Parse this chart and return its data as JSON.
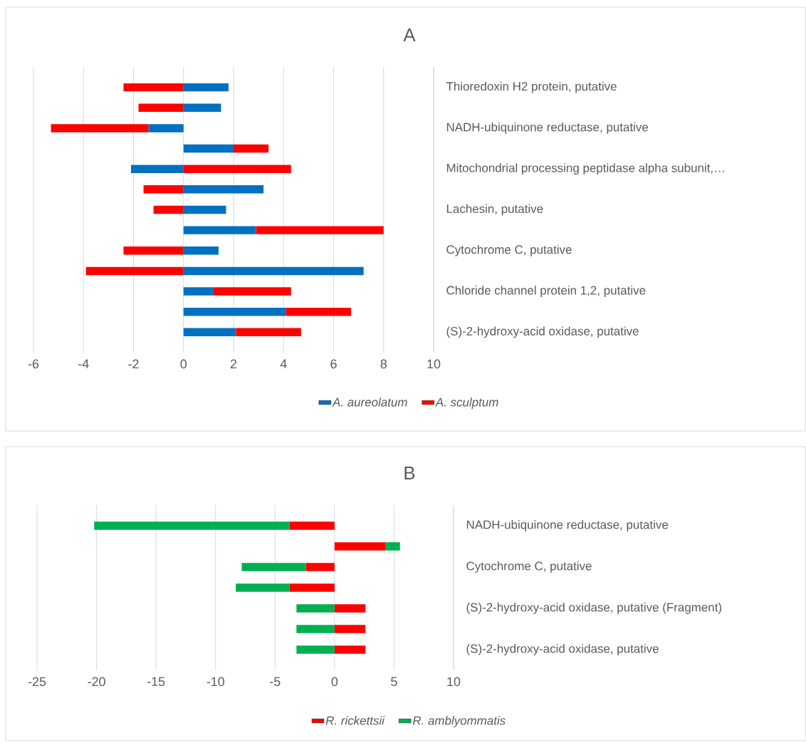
{
  "chart_data": [
    {
      "type": "bar",
      "orientation": "horizontal",
      "stacked": true,
      "title": "A",
      "categories": [
        "Thioredoxin H2 protein, putative",
        null,
        "NADH-ubiquinone reductase, putative",
        null,
        "Mitochondrial processing peptidase alpha subunit,…",
        null,
        "Lachesin, putative",
        null,
        "Cytochrome C, putative",
        null,
        "Chloride channel protein 1,2, putative",
        null,
        "(S)-2-hydroxy-acid oxidase, putative"
      ],
      "series": [
        {
          "name": "A. aureolatum",
          "color": "#0070c0",
          "values": [
            1.8,
            1.5,
            -1.4,
            2.0,
            -2.1,
            3.2,
            1.7,
            2.9,
            1.4,
            7.2,
            1.2,
            4.1,
            2.1
          ]
        },
        {
          "name": "A. sculptum",
          "color": "#ff0000",
          "values": [
            -2.4,
            -1.8,
            -3.9,
            1.4,
            4.3,
            -1.6,
            -1.2,
            5.1,
            -2.4,
            -3.9,
            3.1,
            2.6,
            2.6
          ]
        }
      ],
      "xlim": [
        -6,
        10
      ],
      "xticks": [
        -6,
        -4,
        -2,
        0,
        2,
        4,
        6,
        8,
        10
      ],
      "grid": "x",
      "legend": "bottom"
    },
    {
      "type": "bar",
      "orientation": "horizontal",
      "stacked": true,
      "title": "B",
      "categories": [
        "NADH-ubiquinone reductase, putative",
        null,
        "Cytochrome C, putative",
        null,
        "(S)-2-hydroxy-acid oxidase, putative (Fragment)",
        null,
        "(S)-2-hydroxy-acid oxidase, putative"
      ],
      "series": [
        {
          "name": "R. rickettsii",
          "color": "#ff0000",
          "values": [
            -3.8,
            4.3,
            -2.4,
            -3.8,
            2.6,
            2.6,
            2.6
          ]
        },
        {
          "name": "R. amblyommatis",
          "color": "#00b050",
          "values": [
            -16.4,
            1.2,
            -5.4,
            -4.5,
            -3.2,
            -3.2,
            -3.2
          ]
        }
      ],
      "xlim": [
        -25,
        10
      ],
      "xticks": [
        -25,
        -20,
        -15,
        -10,
        -5,
        0,
        5,
        10
      ],
      "grid": "x",
      "legend": "bottom"
    }
  ]
}
